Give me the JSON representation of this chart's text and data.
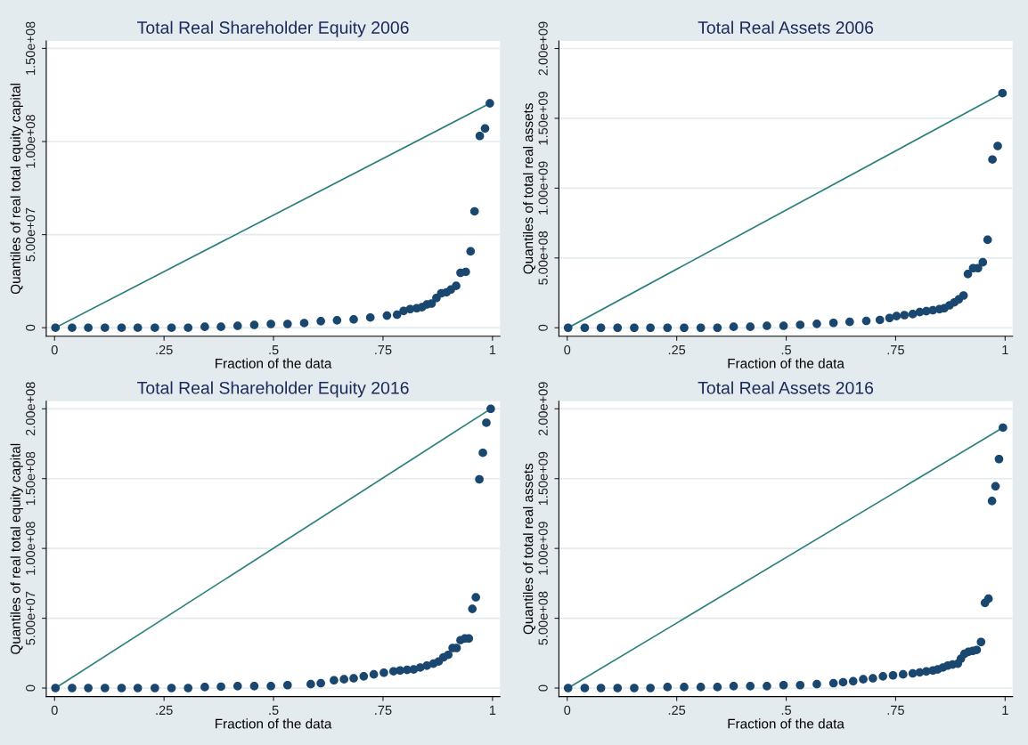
{
  "chart_data": [
    {
      "type": "scatter",
      "title": "Total Real Shareholder Equity 2006",
      "xlabel": "Fraction of the data",
      "ylabel": "Quantiles of real total equity capital",
      "xlim": [
        -0.019,
        1.017
      ],
      "ylim": [
        -4600000,
        154000000
      ],
      "xticks": [
        0,
        {
          "value": 0.25,
          "label": ".25"
        },
        {
          "value": 0.5,
          "label": ".5"
        },
        {
          "value": 0.75,
          "label": ".75"
        },
        1
      ],
      "yticks": [
        0,
        {
          "value": 50000000,
          "label": "5.00e+07"
        },
        {
          "value": 100000000,
          "label": "1.00e+08"
        },
        {
          "value": 150000000,
          "label": "1.50e+08"
        }
      ],
      "grid": "y",
      "series": [
        {
          "marker": "circle",
          "color": "#1a476f",
          "x": [
            0.002,
            0.04,
            0.077,
            0.115,
            0.153,
            0.19,
            0.229,
            0.267,
            0.305,
            0.343,
            0.38,
            0.418,
            0.456,
            0.494,
            0.532,
            0.57,
            0.608,
            0.645,
            0.683,
            0.721,
            0.759,
            0.782,
            0.797,
            0.812,
            0.827,
            0.839,
            0.85,
            0.861,
            0.872,
            0.883,
            0.895,
            0.905,
            0.917,
            0.927,
            0.939,
            0.95,
            0.959,
            0.971,
            0.983,
            0.994
          ],
          "values": [
            0,
            0,
            0,
            0,
            0,
            0,
            0,
            0,
            0,
            500000,
            500000,
            1000000,
            1500000,
            2000000,
            2000000,
            2500000,
            3500000,
            4000000,
            4500000,
            5500000,
            6500000,
            7000000,
            9000000,
            10000000,
            10500000,
            11000000,
            12500000,
            13000000,
            16000000,
            18500000,
            19000000,
            20500000,
            22500000,
            29500000,
            30000000,
            41000000,
            62500000,
            103000000,
            107000000,
            120500000
          ]
        },
        {
          "type": "line",
          "marker": "none",
          "color": "#2a7f7a",
          "x": [
            0.002,
            0.994
          ],
          "values": [
            0,
            120500000
          ]
        }
      ]
    },
    {
      "type": "scatter",
      "title": "Total Real Assets 2006",
      "xlabel": "Fraction of the data",
      "ylabel": "Quantiles of total real assets",
      "xlim": [
        -0.019,
        1.017
      ],
      "ylim": [
        -61000000,
        2054000000
      ],
      "xticks": [
        0,
        {
          "value": 0.25,
          "label": ".25"
        },
        {
          "value": 0.5,
          "label": ".5"
        },
        {
          "value": 0.75,
          "label": ".75"
        },
        1
      ],
      "yticks": [
        0,
        {
          "value": 500000000,
          "label": "5.00e+08"
        },
        {
          "value": 1000000000,
          "label": "1.00e+09"
        },
        {
          "value": 1500000000,
          "label": "1.50e+09"
        },
        {
          "value": 2000000000,
          "label": "2.00e+09"
        }
      ],
      "grid": "y",
      "series": [
        {
          "marker": "circle",
          "color": "#1a476f",
          "x": [
            0.002,
            0.04,
            0.077,
            0.115,
            0.153,
            0.19,
            0.229,
            0.267,
            0.305,
            0.343,
            0.38,
            0.418,
            0.456,
            0.494,
            0.532,
            0.57,
            0.608,
            0.645,
            0.683,
            0.714,
            0.736,
            0.752,
            0.77,
            0.789,
            0.805,
            0.82,
            0.835,
            0.85,
            0.861,
            0.873,
            0.884,
            0.894,
            0.905,
            0.915,
            0.927,
            0.938,
            0.949,
            0.96,
            0.971,
            0.983,
            0.994
          ],
          "values": [
            0,
            0,
            0,
            0,
            0,
            0,
            0,
            0,
            0,
            0,
            7000000,
            7000000,
            14000000,
            14000000,
            21000000,
            28000000,
            35000000,
            42000000,
            49000000,
            56000000,
            70000000,
            84000000,
            91000000,
            98000000,
            112000000,
            119000000,
            126000000,
            133000000,
            140000000,
            161000000,
            182000000,
            203000000,
            231000000,
            385000000,
            427000000,
            427000000,
            469000000,
            630000000,
            1205000000,
            1302000000,
            1680000000
          ]
        },
        {
          "type": "line",
          "marker": "none",
          "color": "#2a7f7a",
          "x": [
            0.002,
            0.994
          ],
          "values": [
            0,
            1680000000
          ]
        }
      ]
    },
    {
      "type": "scatter",
      "title": "Total Real Shareholder Equity 2016",
      "xlabel": "Fraction of the data",
      "ylabel": "Quantiles of real total equity capital",
      "xlim": [
        -0.019,
        1.017
      ],
      "ylim": [
        -6100000,
        205400000
      ],
      "xticks": [
        0,
        {
          "value": 0.25,
          "label": ".25"
        },
        {
          "value": 0.5,
          "label": ".5"
        },
        {
          "value": 0.75,
          "label": ".75"
        },
        1
      ],
      "yticks": [
        0,
        {
          "value": 50000000,
          "label": "5.00e+07"
        },
        {
          "value": 100000000,
          "label": "1.00e+08"
        },
        {
          "value": 150000000,
          "label": "1.50e+08"
        },
        {
          "value": 200000000,
          "label": "2.00e+08"
        }
      ],
      "grid": "y",
      "series": [
        {
          "marker": "circle",
          "color": "#1a476f",
          "x": [
            0.002,
            0.04,
            0.077,
            0.115,
            0.153,
            0.19,
            0.229,
            0.267,
            0.305,
            0.343,
            0.38,
            0.418,
            0.456,
            0.494,
            0.532,
            0.585,
            0.608,
            0.638,
            0.661,
            0.683,
            0.706,
            0.729,
            0.752,
            0.774,
            0.789,
            0.805,
            0.82,
            0.835,
            0.85,
            0.865,
            0.877,
            0.888,
            0.899,
            0.909,
            0.918,
            0.927,
            0.937,
            0.946,
            0.954,
            0.962,
            0.97,
            0.978,
            0.986,
            0.996
          ],
          "values": [
            0,
            0,
            0,
            0,
            0,
            0,
            0,
            0,
            0,
            700000,
            1000000,
            1400000,
            1400000,
            1400000,
            2100000,
            2800000,
            3500000,
            5600000,
            6300000,
            7000000,
            8400000,
            9800000,
            11000000,
            12000000,
            12600000,
            13000000,
            13300000,
            14700000,
            16000000,
            17500000,
            19000000,
            22000000,
            23800000,
            28700000,
            28700000,
            34300000,
            35500000,
            35500000,
            56700000,
            65000000,
            149500000,
            168500000,
            190000000,
            200000000
          ]
        },
        {
          "type": "line",
          "marker": "none",
          "color": "#2a7f7a",
          "x": [
            0.002,
            0.996
          ],
          "values": [
            0,
            200000000
          ]
        }
      ]
    },
    {
      "type": "scatter",
      "title": "Total Real Assets 2016",
      "xlabel": "Fraction of the data",
      "ylabel": "Quantiles of total real assets",
      "xlim": [
        -0.019,
        1.017
      ],
      "ylim": [
        -61000000,
        2054000000
      ],
      "xticks": [
        0,
        {
          "value": 0.25,
          "label": ".25"
        },
        {
          "value": 0.5,
          "label": ".5"
        },
        {
          "value": 0.75,
          "label": ".75"
        },
        1
      ],
      "yticks": [
        0,
        {
          "value": 500000000,
          "label": "5.00e+08"
        },
        {
          "value": 1000000000,
          "label": "1.00e+09"
        },
        {
          "value": 1500000000,
          "label": "1.50e+09"
        },
        {
          "value": 2000000000,
          "label": "2.00e+09"
        }
      ],
      "grid": "y",
      "series": [
        {
          "marker": "circle",
          "color": "#1a476f",
          "x": [
            0.002,
            0.04,
            0.077,
            0.115,
            0.153,
            0.19,
            0.229,
            0.267,
            0.305,
            0.343,
            0.38,
            0.418,
            0.456,
            0.494,
            0.532,
            0.57,
            0.608,
            0.63,
            0.653,
            0.676,
            0.698,
            0.721,
            0.744,
            0.767,
            0.789,
            0.805,
            0.82,
            0.835,
            0.846,
            0.858,
            0.869,
            0.88,
            0.892,
            0.899,
            0.907,
            0.916,
            0.926,
            0.935,
            0.945,
            0.954,
            0.962,
            0.97,
            0.978,
            0.986,
            0.995
          ],
          "values": [
            0,
            0,
            0,
            0,
            0,
            0,
            7000000,
            7000000,
            7000000,
            7000000,
            14000000,
            14000000,
            14000000,
            21000000,
            21000000,
            28000000,
            35000000,
            42000000,
            49000000,
            63000000,
            70000000,
            84000000,
            91000000,
            98000000,
            105000000,
            112000000,
            119000000,
            126000000,
            133000000,
            147000000,
            161000000,
            168000000,
            175000000,
            210000000,
            245000000,
            259000000,
            266000000,
            273000000,
            330000000,
            610000000,
            640000000,
            1340000000,
            1445000000,
            1640000000,
            1865000000
          ]
        },
        {
          "type": "line",
          "marker": "none",
          "color": "#2a7f7a",
          "x": [
            0.002,
            0.995
          ],
          "values": [
            0,
            1865000000
          ]
        }
      ]
    }
  ]
}
